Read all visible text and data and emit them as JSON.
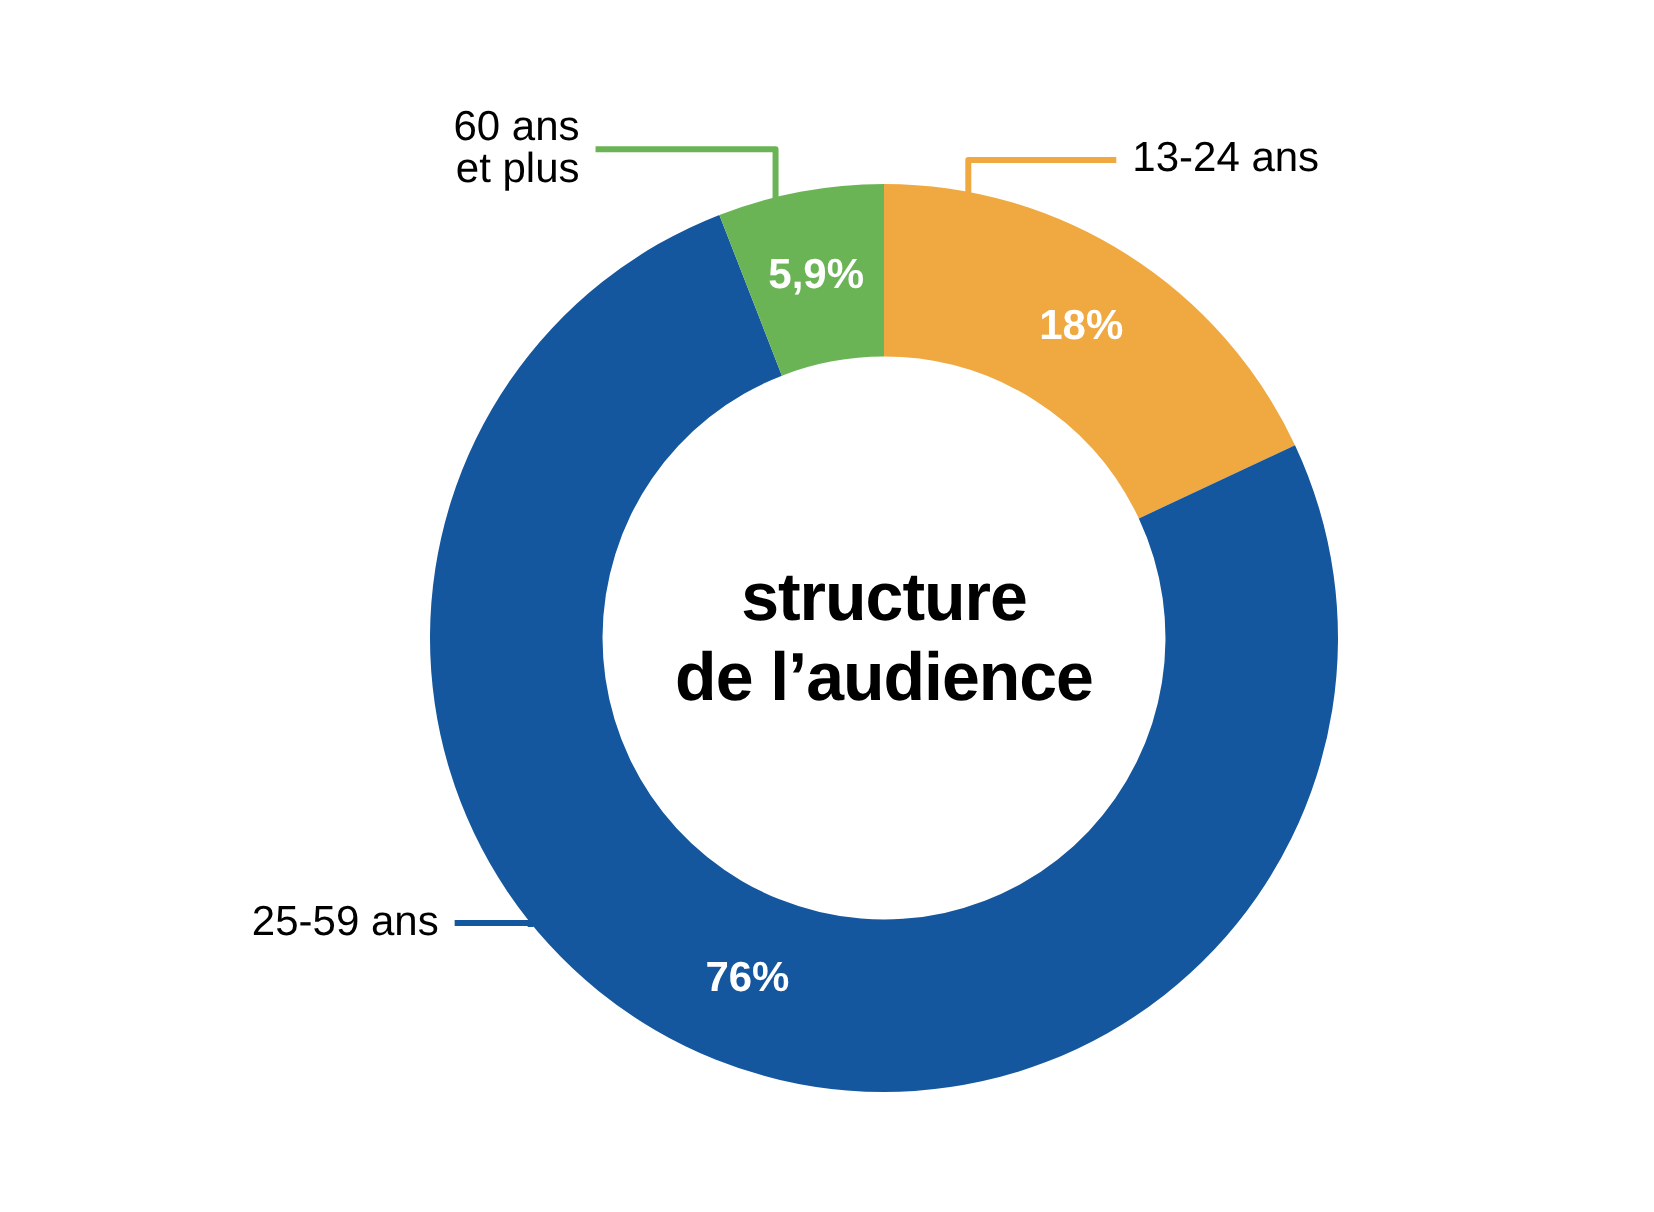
{
  "chart_data": {
    "type": "donut",
    "title": "structure\nde l’audience",
    "categories": [
      "13-24 ans",
      "25-59 ans",
      "60 ans\net plus"
    ],
    "values": [
      18,
      76,
      5.9
    ],
    "colors": [
      "#efa940",
      "#14579e",
      "#6bb456"
    ],
    "value_labels": [
      "18%",
      "76%",
      "5,9%"
    ],
    "legend": false
  }
}
